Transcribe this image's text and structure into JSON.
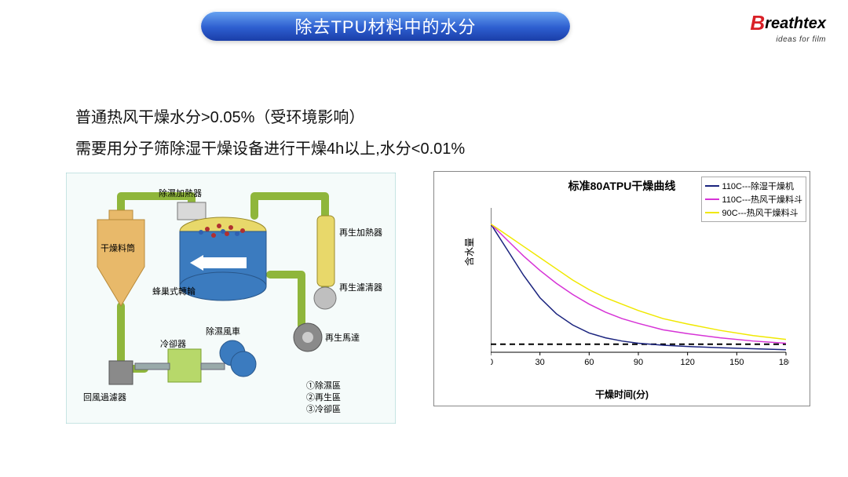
{
  "title": "除去TPU材料中的水分",
  "title_bg_gradient": [
    "#6aa6f2",
    "#2e5fd0",
    "#1a3ea8"
  ],
  "logo": {
    "text": "Breathtex",
    "tagline": "ideas for film",
    "accent_color": "#d92027"
  },
  "paragraph": {
    "line1": "普通热风干燥水分>0.05%（受环境影响）",
    "line2": "需要用分子筛除湿干燥设备进行干燥4h以上,水分<0.01%"
  },
  "diagram": {
    "bg_color": "#f5fbfa",
    "pipe_color": "#8fb63b",
    "drum_fill": "#3b7bbf",
    "drum_top": "#e8d86a",
    "hopper_fill": "#e8b96a",
    "gear_fill": "#8a8a8a",
    "box_fill": "#b7d86a",
    "labels": {
      "hopper": "干燥料筒",
      "dehum_heater": "除濕加熱器",
      "honeycomb": "蜂巢式轉輪",
      "return_filter": "回風過濾器",
      "cooler": "冷卻器",
      "dehum_fan": "除濕風車",
      "regen_heater": "再生加熱器",
      "regen_filter": "再生濾清器",
      "regen_motor": "再生馬達",
      "notes_title": "",
      "note1": "①除濕區",
      "note2": "②再生區",
      "note3": "③冷卻區"
    }
  },
  "chart": {
    "title": "标准80ATPU干燥曲线",
    "xlabel": "干燥时间(分)",
    "ylabel": "含水量",
    "xlim": [
      0,
      180
    ],
    "xtick_step": 30,
    "ylim": [
      0,
      0.45
    ],
    "ytick_step": 0.05,
    "bg": "#ffffff",
    "axis_color": "#000000",
    "grid": false,
    "threshold": {
      "y": 0.025,
      "style": "dashed",
      "color": "#000000"
    },
    "series": [
      {
        "name": "110C---除湿干燥机",
        "color": "#1a237e",
        "width": 1.5,
        "points": [
          [
            0,
            0.4
          ],
          [
            10,
            0.32
          ],
          [
            20,
            0.24
          ],
          [
            30,
            0.17
          ],
          [
            40,
            0.12
          ],
          [
            50,
            0.085
          ],
          [
            60,
            0.06
          ],
          [
            70,
            0.045
          ],
          [
            80,
            0.035
          ],
          [
            90,
            0.028
          ],
          [
            105,
            0.022
          ],
          [
            120,
            0.018
          ],
          [
            140,
            0.014
          ],
          [
            160,
            0.011
          ],
          [
            180,
            0.008
          ]
        ]
      },
      {
        "name": "110C---热风干燥料斗",
        "color": "#d633d6",
        "width": 1.5,
        "points": [
          [
            0,
            0.4
          ],
          [
            10,
            0.35
          ],
          [
            20,
            0.3
          ],
          [
            30,
            0.255
          ],
          [
            40,
            0.215
          ],
          [
            50,
            0.18
          ],
          [
            60,
            0.15
          ],
          [
            70,
            0.125
          ],
          [
            80,
            0.105
          ],
          [
            90,
            0.09
          ],
          [
            105,
            0.07
          ],
          [
            120,
            0.058
          ],
          [
            140,
            0.045
          ],
          [
            160,
            0.035
          ],
          [
            180,
            0.028
          ]
        ]
      },
      {
        "name": "90C---热风干燥料斗",
        "color": "#f0e800",
        "width": 1.5,
        "points": [
          [
            0,
            0.4
          ],
          [
            10,
            0.365
          ],
          [
            20,
            0.33
          ],
          [
            30,
            0.295
          ],
          [
            40,
            0.26
          ],
          [
            50,
            0.225
          ],
          [
            60,
            0.195
          ],
          [
            70,
            0.17
          ],
          [
            80,
            0.15
          ],
          [
            90,
            0.13
          ],
          [
            105,
            0.105
          ],
          [
            120,
            0.088
          ],
          [
            140,
            0.068
          ],
          [
            160,
            0.052
          ],
          [
            180,
            0.04
          ]
        ]
      }
    ]
  }
}
